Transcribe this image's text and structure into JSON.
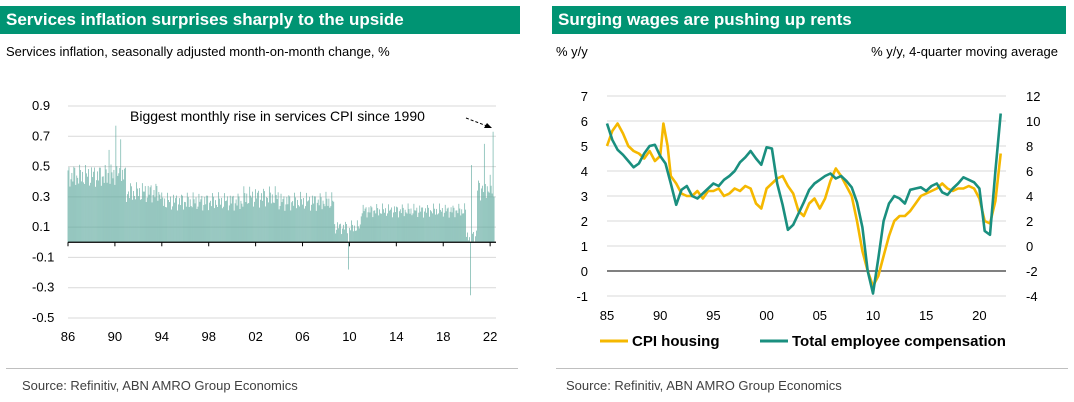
{
  "left": {
    "title": "Services inflation surprises sharply to the upside",
    "subtitle": "Services inflation, seasonally adjusted month-on-month change, %",
    "source": "Source: Refinitiv, ABN AMRO Group Economics"
  },
  "right": {
    "title": "Surging wages are pushing up rents",
    "left_axis_title": "% y/y",
    "right_axis_title": "% y/y, 4-quarter moving average",
    "source": "Source:  Refinitiv, ABN AMRO Group Economics"
  },
  "colors": {
    "brand": "#009473",
    "bar": "#58a69a",
    "teal": "#1a8f7f",
    "gold": "#f5b800",
    "grid": "#d9d9d9"
  },
  "chart_data": [
    {
      "type": "bar",
      "title": "Services inflation surprises sharply to the upside",
      "xlabel": "",
      "ylabel": "Services inflation, seasonally adjusted month-on-month change, %",
      "ylim": [
        -0.5,
        0.9
      ],
      "yticks": [
        0.9,
        0.7,
        0.5,
        0.3,
        0.1,
        -0.1,
        -0.3,
        -0.5
      ],
      "ytick_labels": [
        "0.9",
        "0.7",
        "0.5",
        "0.3",
        "0.1",
        "-0.1",
        "-0.3",
        "-0.5"
      ],
      "xrange": [
        1986,
        2022.5
      ],
      "xticks": [
        1986,
        1990,
        1994,
        1998,
        2002,
        2006,
        2010,
        2014,
        2018,
        2022
      ],
      "xtick_labels": [
        "86",
        "90",
        "94",
        "98",
        "02",
        "06",
        "10",
        "14",
        "18",
        "22"
      ],
      "frequency": "monthly",
      "segments": [
        {
          "start": 1986,
          "end": 1991,
          "mean": 0.44,
          "amp": 0.09
        },
        {
          "start": 1991,
          "end": 1994,
          "mean": 0.33,
          "amp": 0.08
        },
        {
          "start": 1994,
          "end": 2001,
          "mean": 0.27,
          "amp": 0.07
        },
        {
          "start": 2001,
          "end": 2004,
          "mean": 0.3,
          "amp": 0.08
        },
        {
          "start": 2004,
          "end": 2008.7,
          "mean": 0.27,
          "amp": 0.07
        },
        {
          "start": 2008.7,
          "end": 2011,
          "mean": 0.1,
          "amp": 0.05
        },
        {
          "start": 2011,
          "end": 2020,
          "mean": 0.21,
          "amp": 0.05
        },
        {
          "start": 2020,
          "end": 2020.9,
          "mean": 0.05,
          "amp": 0.05
        },
        {
          "start": 2020.9,
          "end": 2022.3,
          "mean": 0.36,
          "amp": 0.09
        }
      ],
      "highlights": [
        {
          "date": 1990.1,
          "value": 0.77
        },
        {
          "date": 1989.5,
          "value": 0.61
        },
        {
          "date": 1990.5,
          "value": 0.68
        },
        {
          "date": 2009.9,
          "value": -0.18
        },
        {
          "date": 2020.3,
          "value": -0.35
        },
        {
          "date": 2020.4,
          "value": 0.51
        },
        {
          "date": 2021.5,
          "value": 0.65
        },
        {
          "date": 2022.25,
          "value": 0.73
        }
      ],
      "annotation": "Biggest monthly rise in services CPI since 1990"
    },
    {
      "type": "line",
      "title": "Surging wages are pushing up rents",
      "left_axis": {
        "title": "% y/y",
        "ylim": [
          -1,
          7
        ],
        "ticks": [
          -1,
          0,
          1,
          2,
          3,
          4,
          5,
          6,
          7
        ]
      },
      "right_axis": {
        "title": "% y/y, 4-quarter moving average",
        "ylim": [
          -4,
          12
        ],
        "ticks": [
          -4,
          -2,
          0,
          2,
          4,
          6,
          8,
          10,
          12
        ]
      },
      "xrange": [
        1985,
        2022.5
      ],
      "xticks": [
        1985,
        1990,
        1995,
        2000,
        2005,
        2010,
        2015,
        2020
      ],
      "xtick_labels": [
        "85",
        "90",
        "95",
        "00",
        "05",
        "10",
        "15",
        "20"
      ],
      "series": [
        {
          "name": "CPI housing",
          "axis": "left",
          "color": "#f5b800",
          "points": [
            [
              1985,
              5.0
            ],
            [
              1985.5,
              5.6
            ],
            [
              1986,
              5.9
            ],
            [
              1986.5,
              5.5
            ],
            [
              1987,
              5.0
            ],
            [
              1987.5,
              4.8
            ],
            [
              1988,
              4.7
            ],
            [
              1988.5,
              4.5
            ],
            [
              1989,
              4.8
            ],
            [
              1989.5,
              4.4
            ],
            [
              1990,
              4.6
            ],
            [
              1990.3,
              5.9
            ],
            [
              1990.7,
              5.0
            ],
            [
              1991,
              3.8
            ],
            [
              1991.5,
              3.5
            ],
            [
              1992,
              3.1
            ],
            [
              1992.5,
              3.0
            ],
            [
              1993,
              3.0
            ],
            [
              1993.5,
              3.2
            ],
            [
              1994,
              2.9
            ],
            [
              1994.5,
              3.2
            ],
            [
              1995,
              3.2
            ],
            [
              1995.5,
              3.3
            ],
            [
              1996,
              3.0
            ],
            [
              1996.5,
              3.1
            ],
            [
              1997,
              3.3
            ],
            [
              1997.5,
              3.2
            ],
            [
              1998,
              3.4
            ],
            [
              1998.5,
              3.3
            ],
            [
              1999,
              2.7
            ],
            [
              1999.5,
              2.5
            ],
            [
              2000,
              3.3
            ],
            [
              2000.5,
              3.5
            ],
            [
              2001,
              3.7
            ],
            [
              2001.5,
              3.8
            ],
            [
              2002,
              3.4
            ],
            [
              2002.5,
              3.1
            ],
            [
              2003,
              2.4
            ],
            [
              2003.5,
              2.2
            ],
            [
              2004,
              2.7
            ],
            [
              2004.5,
              2.9
            ],
            [
              2005,
              2.5
            ],
            [
              2005.5,
              2.9
            ],
            [
              2006,
              3.6
            ],
            [
              2006.5,
              4.1
            ],
            [
              2007,
              3.8
            ],
            [
              2007.5,
              3.4
            ],
            [
              2008,
              3.0
            ],
            [
              2008.5,
              2.0
            ],
            [
              2009,
              0.8
            ],
            [
              2009.5,
              0.0
            ],
            [
              2010,
              -0.6
            ],
            [
              2010.5,
              -0.2
            ],
            [
              2011,
              0.6
            ],
            [
              2011.5,
              1.4
            ],
            [
              2012,
              2.0
            ],
            [
              2012.5,
              2.2
            ],
            [
              2013,
              2.2
            ],
            [
              2013.5,
              2.4
            ],
            [
              2014,
              2.7
            ],
            [
              2014.5,
              3.0
            ],
            [
              2015,
              3.1
            ],
            [
              2015.5,
              3.2
            ],
            [
              2016,
              3.3
            ],
            [
              2016.5,
              3.5
            ],
            [
              2017,
              3.3
            ],
            [
              2017.5,
              3.2
            ],
            [
              2018,
              3.3
            ],
            [
              2018.5,
              3.3
            ],
            [
              2019,
              3.4
            ],
            [
              2019.5,
              3.3
            ],
            [
              2020,
              2.9
            ],
            [
              2020.5,
              2.0
            ],
            [
              2021,
              1.9
            ],
            [
              2021.5,
              2.8
            ],
            [
              2022,
              4.7
            ]
          ]
        },
        {
          "name": "Total employee compensation",
          "axis": "right",
          "color": "#1a8f7f",
          "points": [
            [
              1985,
              9.8
            ],
            [
              1985.5,
              8.5
            ],
            [
              1986,
              7.7
            ],
            [
              1986.5,
              7.3
            ],
            [
              1987,
              6.8
            ],
            [
              1987.5,
              6.3
            ],
            [
              1988,
              6.6
            ],
            [
              1988.5,
              7.4
            ],
            [
              1989,
              8.0
            ],
            [
              1989.5,
              8.1
            ],
            [
              1990,
              7.2
            ],
            [
              1990.5,
              6.6
            ],
            [
              1991,
              5.0
            ],
            [
              1991.5,
              3.3
            ],
            [
              1992,
              4.5
            ],
            [
              1992.5,
              4.8
            ],
            [
              1993,
              4.0
            ],
            [
              1993.5,
              3.8
            ],
            [
              1994,
              4.2
            ],
            [
              1994.5,
              4.6
            ],
            [
              1995,
              5.0
            ],
            [
              1995.5,
              4.8
            ],
            [
              1996,
              5.3
            ],
            [
              1996.5,
              5.6
            ],
            [
              1997,
              6.0
            ],
            [
              1997.5,
              6.7
            ],
            [
              1998,
              7.1
            ],
            [
              1998.5,
              7.6
            ],
            [
              1999,
              7.0
            ],
            [
              1999.5,
              6.5
            ],
            [
              2000,
              7.9
            ],
            [
              2000.5,
              7.8
            ],
            [
              2001,
              5.0
            ],
            [
              2001.5,
              3.3
            ],
            [
              2002,
              1.3
            ],
            [
              2002.5,
              1.7
            ],
            [
              2003,
              2.6
            ],
            [
              2003.5,
              3.5
            ],
            [
              2004,
              4.5
            ],
            [
              2004.5,
              5.0
            ],
            [
              2005,
              5.3
            ],
            [
              2005.5,
              5.6
            ],
            [
              2006,
              5.8
            ],
            [
              2006.5,
              5.4
            ],
            [
              2007,
              5.6
            ],
            [
              2007.5,
              5.2
            ],
            [
              2008,
              4.7
            ],
            [
              2008.5,
              3.5
            ],
            [
              2009,
              1.5
            ],
            [
              2009.5,
              -2.0
            ],
            [
              2010,
              -3.8
            ],
            [
              2010.5,
              -1.0
            ],
            [
              2011,
              2.0
            ],
            [
              2011.5,
              3.4
            ],
            [
              2012,
              4.0
            ],
            [
              2012.5,
              3.8
            ],
            [
              2013,
              3.4
            ],
            [
              2013.5,
              4.5
            ],
            [
              2014,
              4.6
            ],
            [
              2014.5,
              4.7
            ],
            [
              2015,
              4.4
            ],
            [
              2015.5,
              4.8
            ],
            [
              2016,
              5.0
            ],
            [
              2016.5,
              4.3
            ],
            [
              2017,
              4.1
            ],
            [
              2017.5,
              4.6
            ],
            [
              2018,
              5.0
            ],
            [
              2018.5,
              5.5
            ],
            [
              2019,
              5.3
            ],
            [
              2019.5,
              5.1
            ],
            [
              2020,
              4.6
            ],
            [
              2020.5,
              1.2
            ],
            [
              2021,
              0.9
            ],
            [
              2021.5,
              6.0
            ],
            [
              2022,
              10.6
            ]
          ]
        }
      ],
      "legend": [
        "CPI housing",
        "Total employee compensation"
      ]
    }
  ]
}
